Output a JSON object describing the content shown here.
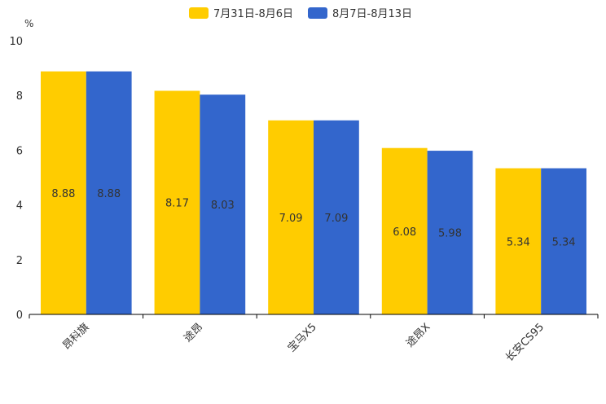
{
  "chart_data": {
    "type": "bar",
    "title": "",
    "xlabel": "",
    "ylabel": "%",
    "ylim": [
      0,
      10
    ],
    "yticks": [
      0,
      2,
      4,
      6,
      8,
      10
    ],
    "categories": [
      "昂科旗",
      "途昂",
      "宝马X5",
      "途昂X",
      "长安CS95"
    ],
    "series": [
      {
        "name": "7月31日-8月6日",
        "color": "#FFCC00",
        "values": [
          8.88,
          8.17,
          7.09,
          6.08,
          5.34
        ]
      },
      {
        "name": "8月7日-8月13日",
        "color": "#3366CC",
        "values": [
          8.88,
          8.03,
          7.09,
          5.98,
          5.34
        ]
      }
    ],
    "legend": "top-center",
    "grid": false
  }
}
